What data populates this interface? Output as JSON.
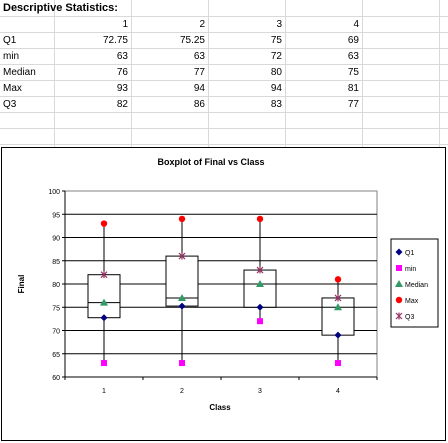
{
  "sheet": {
    "title": "Descriptive Statistics:",
    "columns": [
      "1",
      "2",
      "3",
      "4"
    ],
    "rows": [
      {
        "label": "Q1",
        "values": [
          "72.75",
          "75.25",
          "75",
          "69"
        ]
      },
      {
        "label": "min",
        "values": [
          "63",
          "63",
          "72",
          "63"
        ]
      },
      {
        "label": "Median",
        "values": [
          "76",
          "77",
          "80",
          "75"
        ]
      },
      {
        "label": "Max",
        "values": [
          "93",
          "94",
          "94",
          "81"
        ]
      },
      {
        "label": "Q3",
        "values": [
          "82",
          "86",
          "83",
          "77"
        ]
      }
    ]
  },
  "chart_data": {
    "type": "boxplot",
    "title": "Boxplot of Final vs Class",
    "xlabel": "Class",
    "ylabel": "Final",
    "categories": [
      "1",
      "2",
      "3",
      "4"
    ],
    "ylim": [
      60,
      100
    ],
    "yticks": [
      60,
      65,
      70,
      75,
      80,
      85,
      90,
      95,
      100
    ],
    "grid": true,
    "legend_position": "right",
    "series": [
      {
        "name": "Q1",
        "marker": "diamond",
        "color": "#000080",
        "values": [
          72.75,
          75.25,
          75,
          69
        ]
      },
      {
        "name": "min",
        "marker": "square",
        "color": "#ff00ff",
        "values": [
          63,
          63,
          72,
          63
        ]
      },
      {
        "name": "Median",
        "marker": "triangle",
        "color": "#339966",
        "values": [
          76,
          77,
          80,
          75
        ]
      },
      {
        "name": "Max",
        "marker": "circle",
        "color": "#ff0000",
        "values": [
          93,
          94,
          94,
          81
        ]
      },
      {
        "name": "Q3",
        "marker": "star",
        "color": "#993366",
        "values": [
          82,
          86,
          83,
          77
        ]
      }
    ]
  }
}
